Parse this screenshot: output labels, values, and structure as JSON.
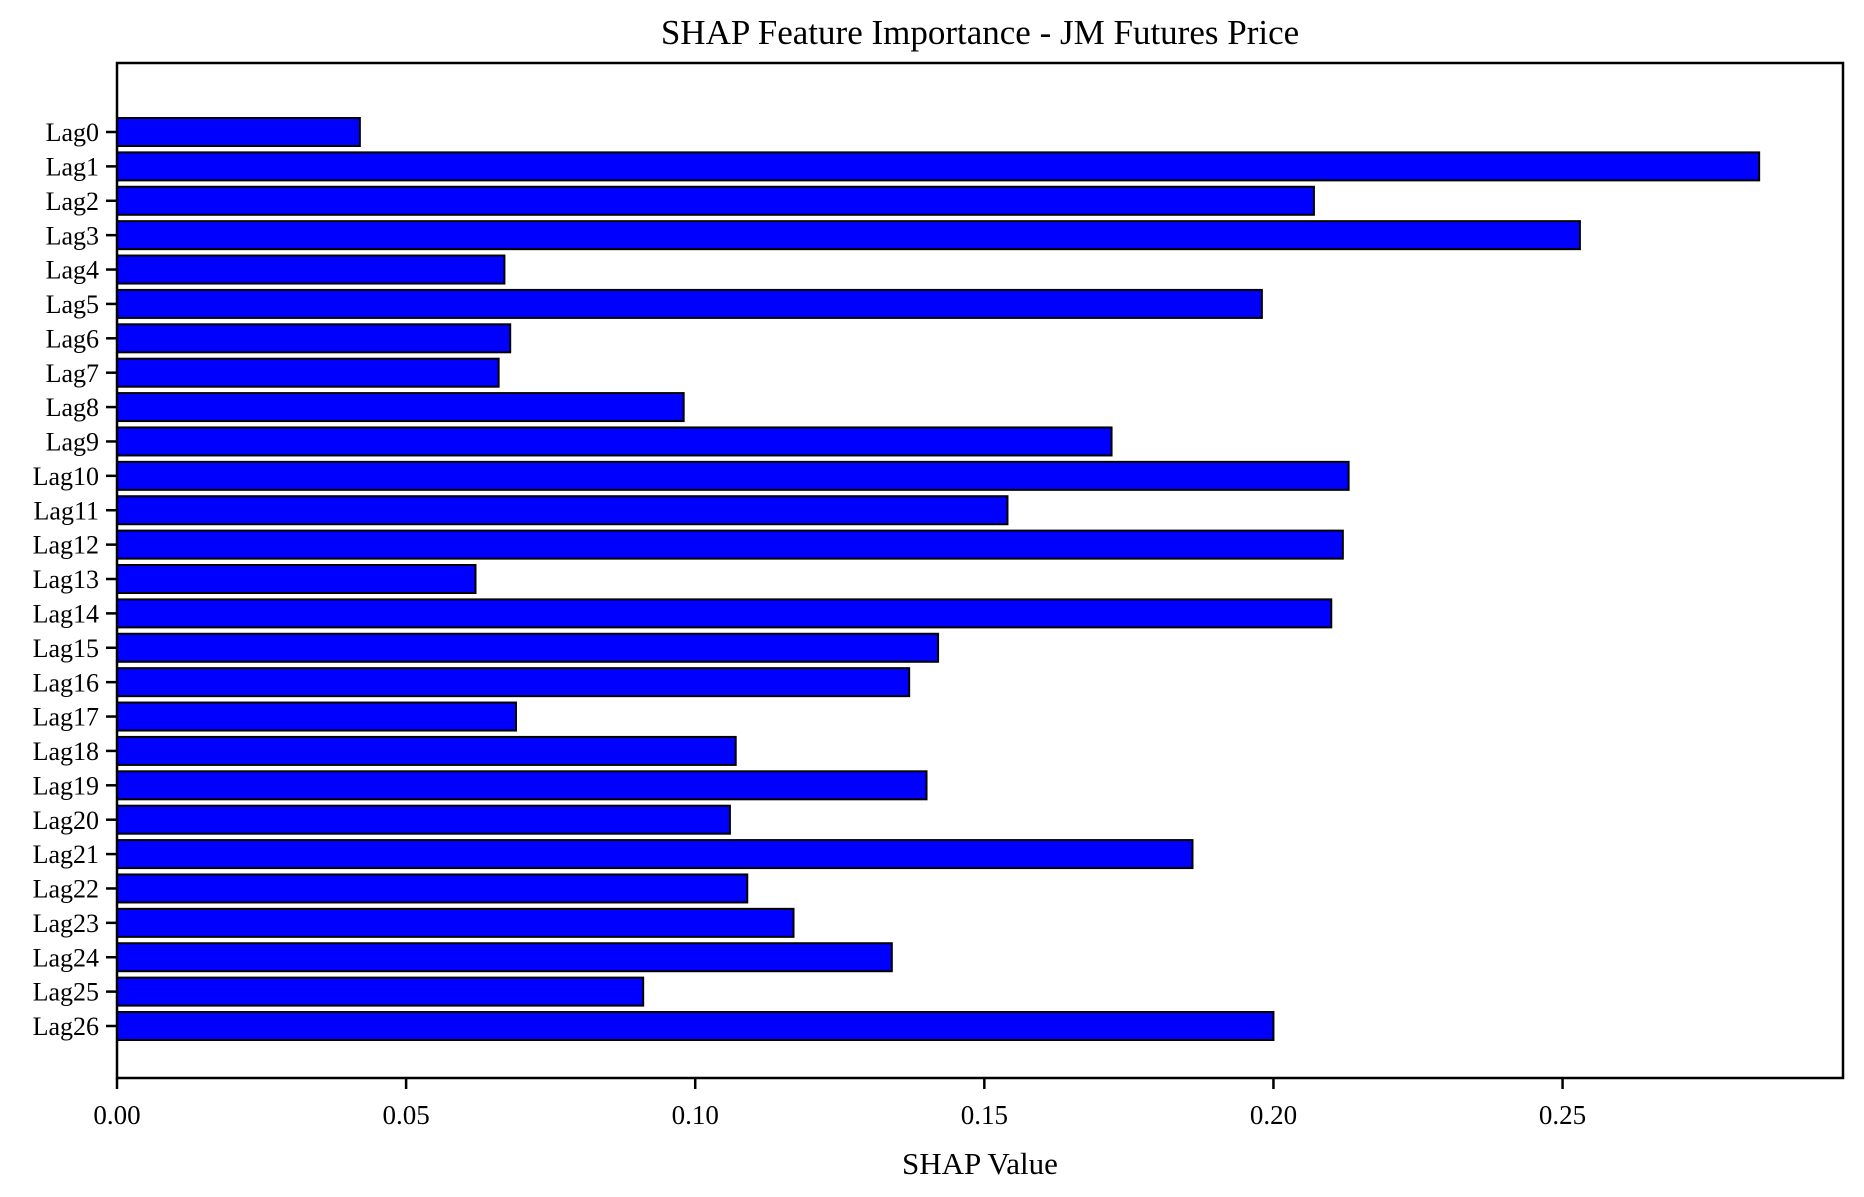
{
  "chart_data": {
    "type": "bar",
    "orientation": "horizontal",
    "title": "SHAP Feature Importance - JM Futures Price",
    "xlabel": "SHAP Value",
    "ylabel": "",
    "categories": [
      "Lag0",
      "Lag1",
      "Lag2",
      "Lag3",
      "Lag4",
      "Lag5",
      "Lag6",
      "Lag7",
      "Lag8",
      "Lag9",
      "Lag10",
      "Lag11",
      "Lag12",
      "Lag13",
      "Lag14",
      "Lag15",
      "Lag16",
      "Lag17",
      "Lag18",
      "Lag19",
      "Lag20",
      "Lag21",
      "Lag22",
      "Lag23",
      "Lag24",
      "Lag25",
      "Lag26"
    ],
    "values": [
      0.042,
      0.284,
      0.207,
      0.253,
      0.067,
      0.198,
      0.068,
      0.066,
      0.098,
      0.172,
      0.213,
      0.154,
      0.212,
      0.062,
      0.21,
      0.142,
      0.137,
      0.069,
      0.107,
      0.14,
      0.106,
      0.186,
      0.109,
      0.117,
      0.134,
      0.091,
      0.2
    ],
    "xlim": [
      0,
      0.2985
    ],
    "xticks": [
      0.0,
      0.05,
      0.1,
      0.15,
      0.2,
      0.25
    ],
    "xtick_labels": [
      "0.00",
      "0.05",
      "0.10",
      "0.15",
      "0.20",
      "0.25"
    ],
    "grid": false,
    "legend": null,
    "colors": {
      "bar_fill": "#0000ff",
      "bar_edge": "#000000",
      "axis": "#000000",
      "background": "#ffffff"
    }
  }
}
